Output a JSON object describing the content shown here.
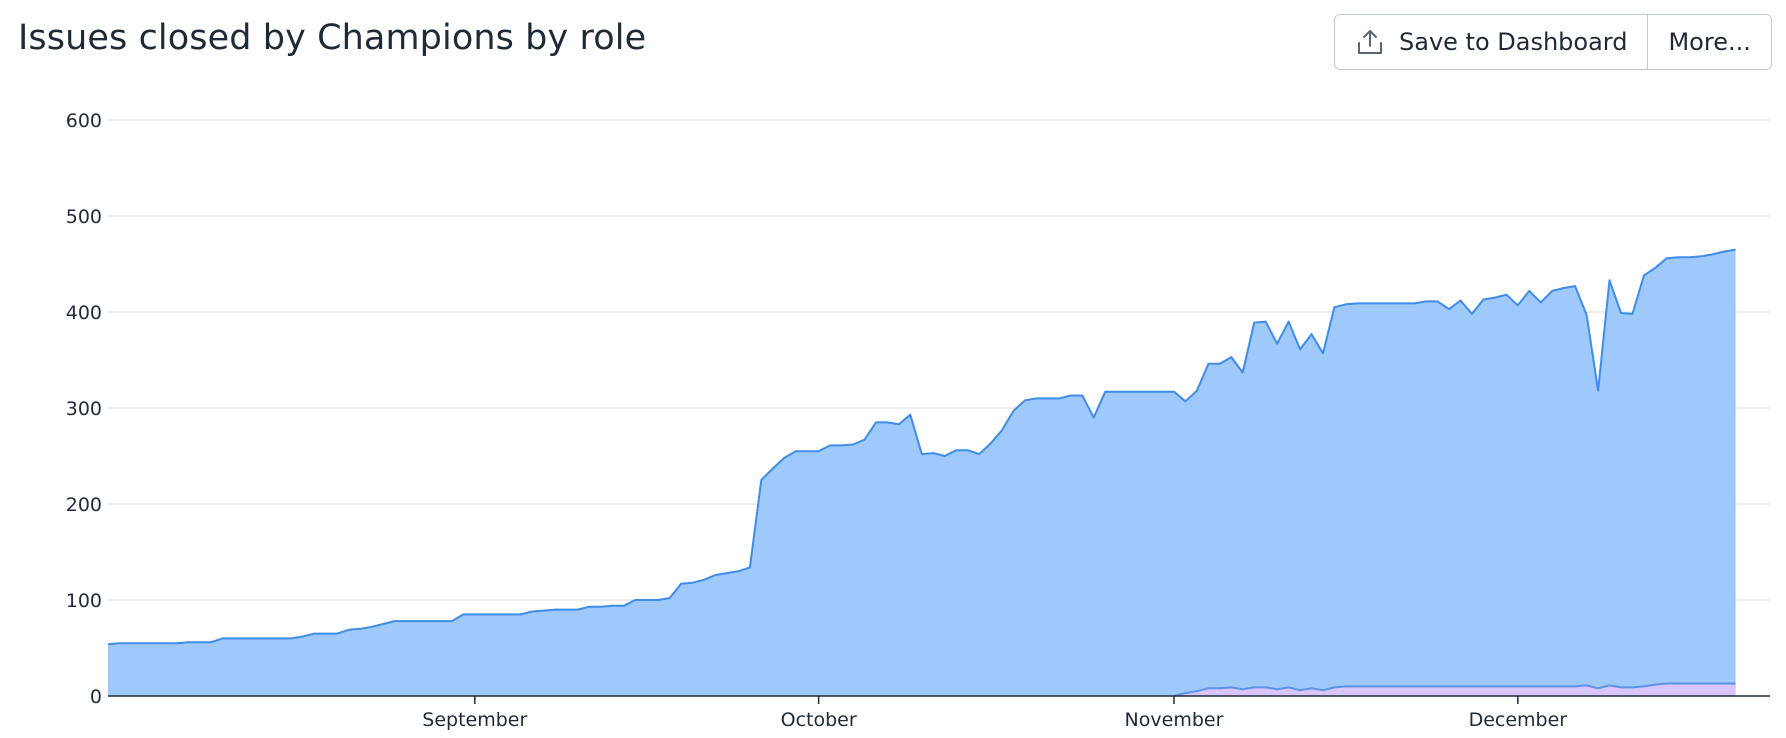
{
  "header": {
    "title": "Issues closed by Champions by role",
    "save_label": "Save to Dashboard",
    "more_label": "More..."
  },
  "chart_data": {
    "type": "area",
    "title": "Issues closed by Champions by role",
    "xlabel": "",
    "ylabel": "",
    "ylim": [
      0,
      600
    ],
    "yticks": [
      0,
      100,
      200,
      300,
      400,
      500,
      600
    ],
    "xlim": [
      "2023-07-31",
      "2023-12-23"
    ],
    "xticks": [
      {
        "label": "September",
        "date": "2023-09-01"
      },
      {
        "label": "October",
        "date": "2023-10-01"
      },
      {
        "label": "November",
        "date": "2023-11-01"
      },
      {
        "label": "December",
        "date": "2023-12-01"
      }
    ],
    "grid": true,
    "legend": "none",
    "colors": {
      "primary_fill": "#9fc8fb",
      "primary_line": "#3f8de8",
      "secondary_fill": "#d7c5fb",
      "secondary_line": "#5c93e6",
      "grid": "#e5e7eb",
      "axis": "#1f2a37"
    },
    "series": [
      {
        "points": [
          [
            "2023-07-31",
            54
          ],
          [
            "2023-08-01",
            55
          ],
          [
            "2023-08-02",
            55
          ],
          [
            "2023-08-03",
            55
          ],
          [
            "2023-08-04",
            55
          ],
          [
            "2023-08-05",
            55
          ],
          [
            "2023-08-06",
            55
          ],
          [
            "2023-08-07",
            56
          ],
          [
            "2023-08-08",
            56
          ],
          [
            "2023-08-09",
            56
          ],
          [
            "2023-08-10",
            60
          ],
          [
            "2023-08-11",
            60
          ],
          [
            "2023-08-12",
            60
          ],
          [
            "2023-08-13",
            60
          ],
          [
            "2023-08-14",
            60
          ],
          [
            "2023-08-15",
            60
          ],
          [
            "2023-08-16",
            60
          ],
          [
            "2023-08-17",
            62
          ],
          [
            "2023-08-18",
            65
          ],
          [
            "2023-08-19",
            65
          ],
          [
            "2023-08-20",
            65
          ],
          [
            "2023-08-21",
            69
          ],
          [
            "2023-08-22",
            70
          ],
          [
            "2023-08-23",
            72
          ],
          [
            "2023-08-24",
            75
          ],
          [
            "2023-08-25",
            78
          ],
          [
            "2023-08-26",
            78
          ],
          [
            "2023-08-27",
            78
          ],
          [
            "2023-08-28",
            78
          ],
          [
            "2023-08-29",
            78
          ],
          [
            "2023-08-30",
            78
          ],
          [
            "2023-08-31",
            85
          ],
          [
            "2023-09-01",
            85
          ],
          [
            "2023-09-02",
            85
          ],
          [
            "2023-09-03",
            85
          ],
          [
            "2023-09-04",
            85
          ],
          [
            "2023-09-05",
            85
          ],
          [
            "2023-09-06",
            88
          ],
          [
            "2023-09-07",
            89
          ],
          [
            "2023-09-08",
            90
          ],
          [
            "2023-09-09",
            90
          ],
          [
            "2023-09-10",
            90
          ],
          [
            "2023-09-11",
            93
          ],
          [
            "2023-09-12",
            93
          ],
          [
            "2023-09-13",
            94
          ],
          [
            "2023-09-14",
            94
          ],
          [
            "2023-09-15",
            100
          ],
          [
            "2023-09-16",
            100
          ],
          [
            "2023-09-17",
            100
          ],
          [
            "2023-09-18",
            102
          ],
          [
            "2023-09-19",
            117
          ],
          [
            "2023-09-20",
            118
          ],
          [
            "2023-09-21",
            121
          ],
          [
            "2023-09-22",
            126
          ],
          [
            "2023-09-23",
            128
          ],
          [
            "2023-09-24",
            130
          ],
          [
            "2023-09-25",
            134
          ],
          [
            "2023-09-26",
            225
          ],
          [
            "2023-09-27",
            237
          ],
          [
            "2023-09-28",
            248
          ],
          [
            "2023-09-29",
            255
          ],
          [
            "2023-09-30",
            255
          ],
          [
            "2023-10-01",
            255
          ],
          [
            "2023-10-02",
            261
          ],
          [
            "2023-10-03",
            261
          ],
          [
            "2023-10-04",
            262
          ],
          [
            "2023-10-05",
            267
          ],
          [
            "2023-10-06",
            285
          ],
          [
            "2023-10-07",
            285
          ],
          [
            "2023-10-08",
            283
          ],
          [
            "2023-10-09",
            293
          ],
          [
            "2023-10-10",
            252
          ],
          [
            "2023-10-11",
            253
          ],
          [
            "2023-10-12",
            250
          ],
          [
            "2023-10-13",
            256
          ],
          [
            "2023-10-14",
            256
          ],
          [
            "2023-10-15",
            252
          ],
          [
            "2023-10-16",
            263
          ],
          [
            "2023-10-17",
            277
          ],
          [
            "2023-10-18",
            297
          ],
          [
            "2023-10-19",
            308
          ],
          [
            "2023-10-20",
            310
          ],
          [
            "2023-10-21",
            310
          ],
          [
            "2023-10-22",
            310
          ],
          [
            "2023-10-23",
            313
          ],
          [
            "2023-10-24",
            313
          ],
          [
            "2023-10-25",
            290
          ],
          [
            "2023-10-26",
            317
          ],
          [
            "2023-10-27",
            317
          ],
          [
            "2023-10-28",
            317
          ],
          [
            "2023-10-29",
            317
          ],
          [
            "2023-10-30",
            317
          ],
          [
            "2023-10-31",
            317
          ],
          [
            "2023-11-01",
            317
          ],
          [
            "2023-11-02",
            307
          ],
          [
            "2023-11-03",
            318
          ],
          [
            "2023-11-04",
            346
          ],
          [
            "2023-11-05",
            346
          ],
          [
            "2023-11-06",
            353
          ],
          [
            "2023-11-07",
            337
          ],
          [
            "2023-11-08",
            389
          ],
          [
            "2023-11-09",
            390
          ],
          [
            "2023-11-10",
            367
          ],
          [
            "2023-11-11",
            390
          ],
          [
            "2023-11-12",
            361
          ],
          [
            "2023-11-13",
            377
          ],
          [
            "2023-11-14",
            357
          ],
          [
            "2023-11-15",
            405
          ],
          [
            "2023-11-16",
            408
          ],
          [
            "2023-11-17",
            409
          ],
          [
            "2023-11-18",
            409
          ],
          [
            "2023-11-19",
            409
          ],
          [
            "2023-11-20",
            409
          ],
          [
            "2023-11-21",
            409
          ],
          [
            "2023-11-22",
            409
          ],
          [
            "2023-11-23",
            411
          ],
          [
            "2023-11-24",
            411
          ],
          [
            "2023-11-25",
            403
          ],
          [
            "2023-11-26",
            412
          ],
          [
            "2023-11-27",
            398
          ],
          [
            "2023-11-28",
            413
          ],
          [
            "2023-11-29",
            415
          ],
          [
            "2023-11-30",
            418
          ],
          [
            "2023-12-01",
            407
          ],
          [
            "2023-12-02",
            422
          ],
          [
            "2023-12-03",
            410
          ],
          [
            "2023-12-04",
            422
          ],
          [
            "2023-12-05",
            425
          ],
          [
            "2023-12-06",
            427
          ],
          [
            "2023-12-07",
            397
          ],
          [
            "2023-12-08",
            318
          ],
          [
            "2023-12-09",
            433
          ],
          [
            "2023-12-10",
            399
          ],
          [
            "2023-12-11",
            398
          ],
          [
            "2023-12-12",
            438
          ],
          [
            "2023-12-13",
            446
          ],
          [
            "2023-12-14",
            456
          ],
          [
            "2023-12-15",
            457
          ],
          [
            "2023-12-16",
            457
          ],
          [
            "2023-12-17",
            458
          ],
          [
            "2023-12-18",
            460
          ],
          [
            "2023-12-19",
            463
          ],
          [
            "2023-12-20",
            465
          ]
        ]
      },
      {
        "points": [
          [
            "2023-11-01",
            0
          ],
          [
            "2023-11-02",
            3
          ],
          [
            "2023-11-03",
            5
          ],
          [
            "2023-11-04",
            8
          ],
          [
            "2023-11-05",
            8
          ],
          [
            "2023-11-06",
            9
          ],
          [
            "2023-11-07",
            7
          ],
          [
            "2023-11-08",
            9
          ],
          [
            "2023-11-09",
            9
          ],
          [
            "2023-11-10",
            7
          ],
          [
            "2023-11-11",
            9
          ],
          [
            "2023-11-12",
            6
          ],
          [
            "2023-11-13",
            8
          ],
          [
            "2023-11-14",
            6
          ],
          [
            "2023-11-15",
            9
          ],
          [
            "2023-11-16",
            10
          ],
          [
            "2023-11-17",
            10
          ],
          [
            "2023-11-18",
            10
          ],
          [
            "2023-11-19",
            10
          ],
          [
            "2023-11-20",
            10
          ],
          [
            "2023-11-21",
            10
          ],
          [
            "2023-11-22",
            10
          ],
          [
            "2023-11-23",
            10
          ],
          [
            "2023-11-24",
            10
          ],
          [
            "2023-11-25",
            10
          ],
          [
            "2023-11-26",
            10
          ],
          [
            "2023-11-27",
            10
          ],
          [
            "2023-11-28",
            10
          ],
          [
            "2023-11-29",
            10
          ],
          [
            "2023-11-30",
            10
          ],
          [
            "2023-12-01",
            10
          ],
          [
            "2023-12-02",
            10
          ],
          [
            "2023-12-03",
            10
          ],
          [
            "2023-12-04",
            10
          ],
          [
            "2023-12-05",
            10
          ],
          [
            "2023-12-06",
            10
          ],
          [
            "2023-12-07",
            11
          ],
          [
            "2023-12-08",
            8
          ],
          [
            "2023-12-09",
            11
          ],
          [
            "2023-12-10",
            9
          ],
          [
            "2023-12-11",
            9
          ],
          [
            "2023-12-12",
            10
          ],
          [
            "2023-12-13",
            12
          ],
          [
            "2023-12-14",
            13
          ],
          [
            "2023-12-15",
            13
          ],
          [
            "2023-12-16",
            13
          ],
          [
            "2023-12-17",
            13
          ],
          [
            "2023-12-18",
            13
          ],
          [
            "2023-12-19",
            13
          ],
          [
            "2023-12-20",
            13
          ]
        ]
      }
    ]
  }
}
